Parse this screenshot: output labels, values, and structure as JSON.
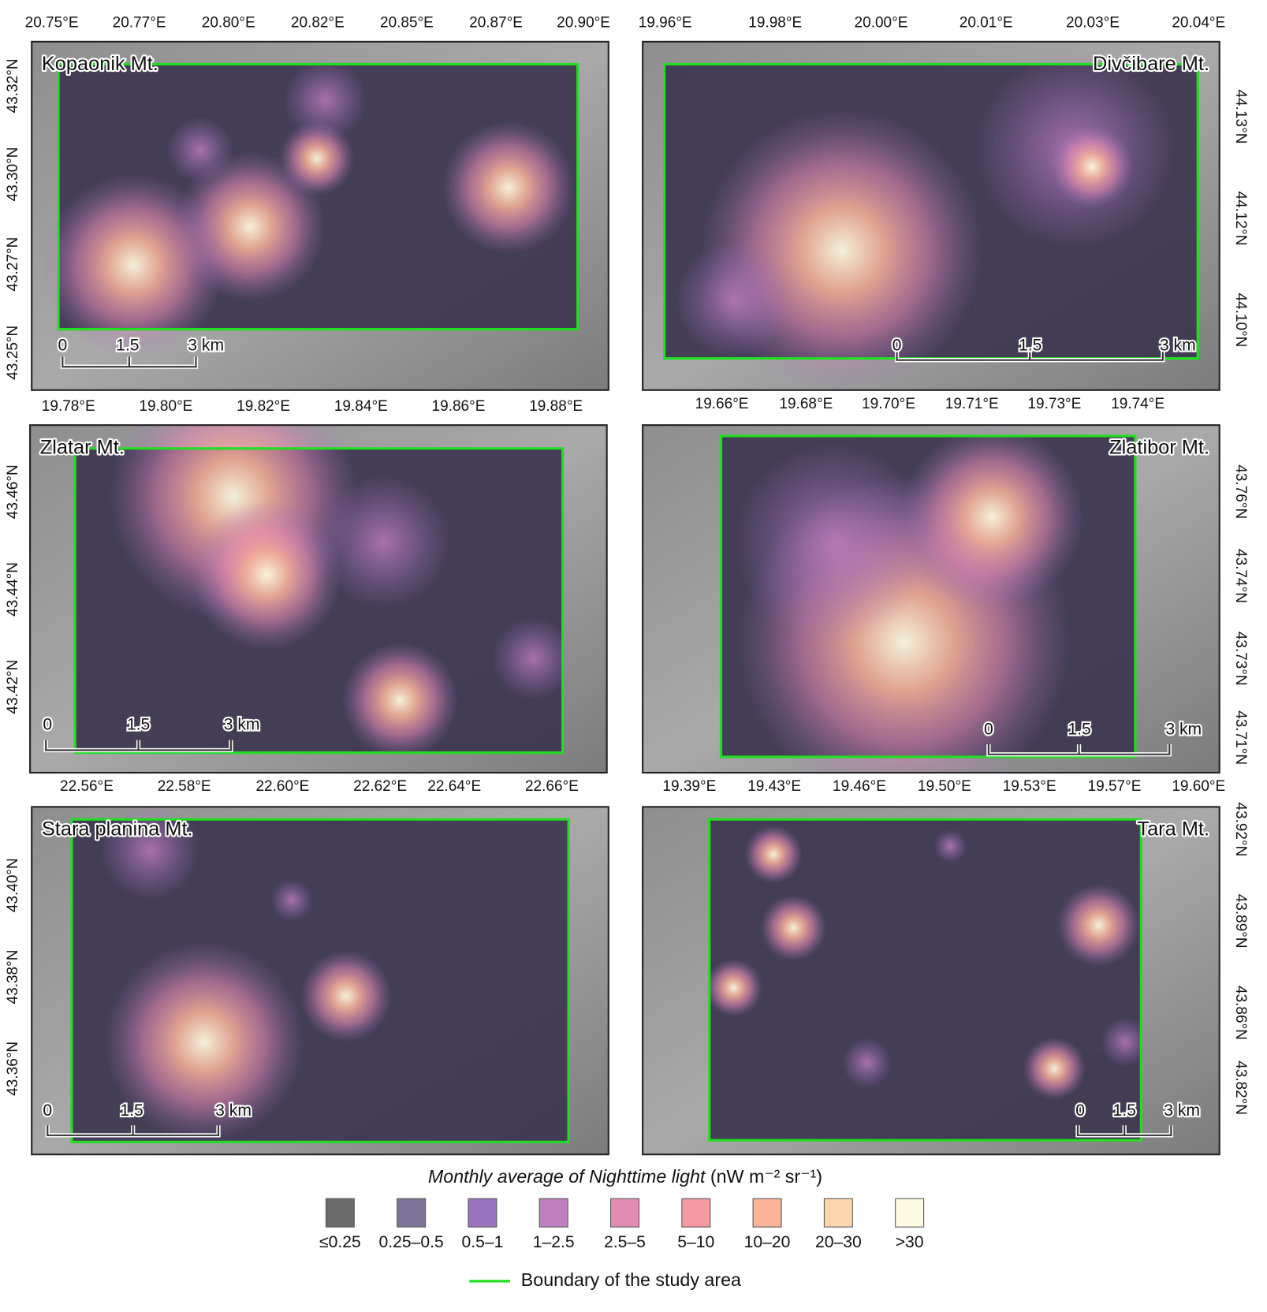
{
  "panels": [
    {
      "name": "Kopaonik Mt.",
      "lon_labels": [
        "20.75°E",
        "20.77°E",
        "20.80°E",
        "20.82°E",
        "20.85°E",
        "20.87°E",
        "20.90°E"
      ],
      "lat_labels": [
        "43.32°N",
        "43.30°N",
        "43.27°N",
        "43.25°N"
      ],
      "scale_labels": [
        "0",
        "1.5",
        "3 km"
      ]
    },
    {
      "name": "Divčibare Mt.",
      "lon_labels": [
        "19.96°E",
        "19.98°E",
        "20.00°E",
        "20.01°E",
        "20.03°E",
        "20.04°E"
      ],
      "lat_labels": [
        "44.13°N",
        "44.12°N",
        "44.10°N"
      ],
      "scale_labels": [
        "0",
        "1.5",
        "3 km"
      ]
    },
    {
      "name": "Zlatar Mt.",
      "lon_labels": [
        "19.78°E",
        "19.80°E",
        "19.82°E",
        "19.84°E",
        "19.86°E",
        "19.88°E"
      ],
      "lat_labels": [
        "43.46°N",
        "43.44°N",
        "43.42°N"
      ],
      "scale_labels": [
        "0",
        "1.5",
        "3 km"
      ]
    },
    {
      "name": "Zlatibor Mt.",
      "lon_labels": [
        "19.66°E",
        "19.68°E",
        "19.70°E",
        "19.71°E",
        "19.73°E",
        "19.74°E"
      ],
      "lat_labels": [
        "43.76°N",
        "43.74°N",
        "43.73°N",
        "43.71°N"
      ],
      "scale_labels": [
        "0",
        "1.5",
        "3 km"
      ]
    },
    {
      "name": "Stara planina Mt.",
      "lon_labels": [
        "22.56°E",
        "22.58°E",
        "22.60°E",
        "22.62°E",
        "22.64°E",
        "22.66°E"
      ],
      "lat_labels": [
        "43.40°N",
        "43.38°N",
        "43.36°N"
      ],
      "scale_labels": [
        "0",
        "1.5",
        "3 km"
      ]
    },
    {
      "name": "Tara Mt.",
      "lon_labels": [
        "19.39°E",
        "19.43°E",
        "19.46°E",
        "19.50°E",
        "19.53°E",
        "19.57°E",
        "19.60°E"
      ],
      "lat_labels": [
        "43.92°N",
        "43.89°N",
        "43.86°N",
        "43.82°N"
      ],
      "scale_labels": [
        "0",
        "1.5",
        "3 km"
      ]
    }
  ],
  "legend": {
    "title_italic": "Monthly average of Nighttime light",
    "title_unit": "(nW m⁻² sr⁻¹)",
    "classes": [
      {
        "label": "≤0.25",
        "color": "#6b6b6b"
      },
      {
        "label": "0.25–0.5",
        "color": "#7e7398"
      },
      {
        "label": "0.5–1",
        "color": "#9b72bd"
      },
      {
        "label": "1–2.5",
        "color": "#c27fc0"
      },
      {
        "label": "2.5–5",
        "color": "#e48bb3"
      },
      {
        "label": "5–10",
        "color": "#f59aa0"
      },
      {
        "label": "10–20",
        "color": "#fbb39a"
      },
      {
        "label": "20–30",
        "color": "#fdd6b0"
      },
      {
        "label": ">30",
        "color": "#fdfbe1"
      }
    ],
    "boundary": "Boundary of the study area"
  }
}
